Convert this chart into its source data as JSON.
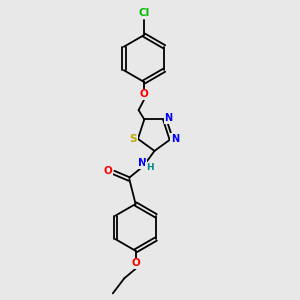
{
  "background_color": "#e8e8e8",
  "bond_color": "#000000",
  "atom_colors": {
    "Cl": "#00bb00",
    "O": "#ff0000",
    "N": "#0000ff",
    "S": "#bbaa00",
    "C": "#000000",
    "H": "#008888"
  },
  "fig_w": 3.0,
  "fig_h": 3.0,
  "dpi": 100
}
